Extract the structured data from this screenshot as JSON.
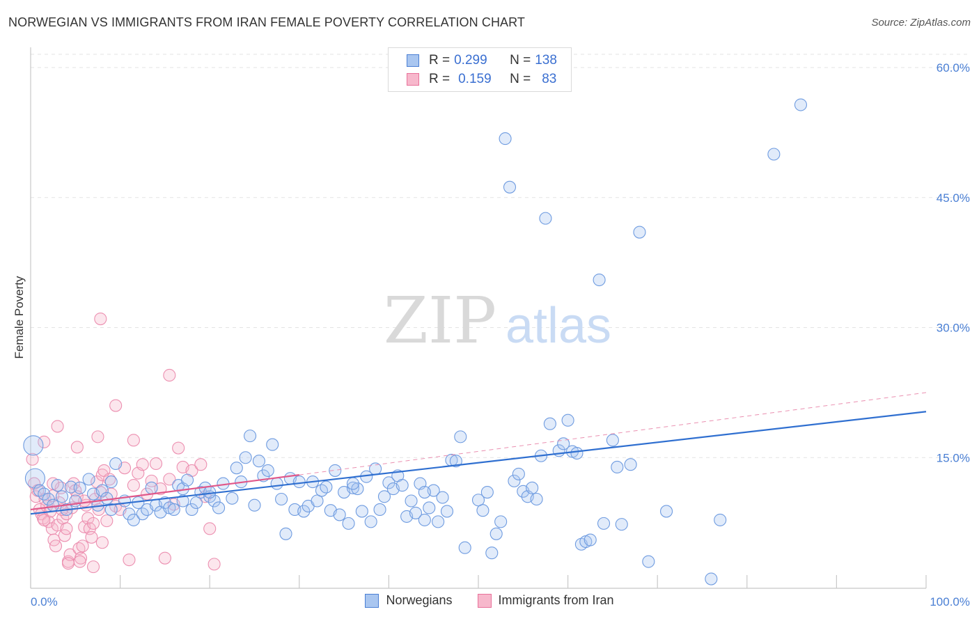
{
  "header": {
    "title": "NORWEGIAN VS IMMIGRANTS FROM IRAN FEMALE POVERTY CORRELATION CHART",
    "source": "Source: ZipAtlas.com"
  },
  "watermark": {
    "zip": "ZIP",
    "atlas": "atlas"
  },
  "legend": {
    "rows": [
      {
        "r_label": "R =",
        "r_value": "0.299",
        "n_label": "N =",
        "n_value": "138"
      },
      {
        "r_label": "R =",
        "r_value": "0.159",
        "n_label": "N =",
        "n_value": "83"
      }
    ]
  },
  "colors": {
    "blue": "#4a7fd4",
    "blue_fill": "#a9c6f0",
    "blue_line": "#2f6fd0",
    "pink": "#e8719a",
    "pink_fill": "#f7b8cc",
    "pink_line": "#e0588a"
  },
  "chart_data": {
    "type": "scatter",
    "title": "NORWEGIAN VS IMMIGRANTS FROM IRAN FEMALE POVERTY CORRELATION CHART",
    "xlabel": "",
    "ylabel": "Female Poverty",
    "xlim": [
      0,
      100
    ],
    "ylim": [
      0,
      63
    ],
    "x_tick_labels": [
      "0.0%",
      "100.0%"
    ],
    "y_ticks": [
      15,
      30,
      45,
      60
    ],
    "y_tick_labels": [
      "15.0%",
      "30.0%",
      "45.0%",
      "60.0%"
    ],
    "grid": true,
    "legend_position": "bottom",
    "series": [
      {
        "name": "Norwegians",
        "color": "#4a7fd4",
        "trend": {
          "x": [
            0,
            100
          ],
          "y": [
            8.5,
            20.3
          ],
          "style": "solid"
        },
        "points": [
          [
            0.3,
            16.4
          ],
          [
            0.5,
            12.6
          ],
          [
            1.0,
            11.2
          ],
          [
            1.5,
            10.8
          ],
          [
            2.0,
            10.2
          ],
          [
            2.5,
            9.5
          ],
          [
            3.0,
            11.8
          ],
          [
            3.5,
            10.5
          ],
          [
            4.0,
            9.0
          ],
          [
            4.5,
            11.6
          ],
          [
            5.0,
            10.0
          ],
          [
            5.5,
            11.5
          ],
          [
            6.5,
            12.5
          ],
          [
            7.0,
            10.8
          ],
          [
            7.5,
            9.5
          ],
          [
            8.0,
            11.2
          ],
          [
            8.5,
            10.3
          ],
          [
            9.0,
            12.2
          ],
          [
            9.5,
            14.3
          ],
          [
            10.5,
            10.0
          ],
          [
            11.0,
            8.5
          ],
          [
            11.5,
            7.8
          ],
          [
            12.0,
            9.8
          ],
          [
            12.5,
            8.5
          ],
          [
            13.0,
            9.0
          ],
          [
            13.5,
            11.5
          ],
          [
            14.0,
            9.5
          ],
          [
            14.5,
            8.7
          ],
          [
            15.0,
            9.8
          ],
          [
            15.5,
            9.2
          ],
          [
            16.0,
            9.0
          ],
          [
            16.5,
            11.8
          ],
          [
            17.0,
            11.4
          ],
          [
            17.5,
            12.4
          ],
          [
            18.0,
            9.0
          ],
          [
            18.5,
            9.8
          ],
          [
            19.0,
            11.0
          ],
          [
            19.5,
            11.5
          ],
          [
            20.0,
            10.5
          ],
          [
            20.5,
            10.0
          ],
          [
            21.0,
            9.2
          ],
          [
            21.5,
            12.0
          ],
          [
            22.5,
            10.3
          ],
          [
            23.0,
            13.8
          ],
          [
            23.5,
            12.2
          ],
          [
            24.0,
            15.0
          ],
          [
            24.5,
            17.5
          ],
          [
            25.0,
            9.5
          ],
          [
            25.5,
            14.6
          ],
          [
            26.0,
            12.9
          ],
          [
            26.5,
            13.5
          ],
          [
            27.0,
            16.5
          ],
          [
            27.5,
            12.0
          ],
          [
            28.0,
            10.2
          ],
          [
            28.5,
            6.2
          ],
          [
            29.0,
            12.6
          ],
          [
            29.5,
            9.0
          ],
          [
            30.0,
            12.2
          ],
          [
            30.5,
            8.8
          ],
          [
            31.0,
            9.4
          ],
          [
            31.5,
            12.2
          ],
          [
            32.0,
            10.0
          ],
          [
            32.5,
            11.2
          ],
          [
            33.0,
            11.6
          ],
          [
            33.5,
            8.9
          ],
          [
            34.0,
            13.5
          ],
          [
            34.5,
            8.4
          ],
          [
            35.0,
            11.0
          ],
          [
            35.5,
            7.4
          ],
          [
            36.0,
            11.5
          ],
          [
            36.5,
            11.4
          ],
          [
            37.0,
            8.8
          ],
          [
            37.5,
            12.8
          ],
          [
            38.0,
            7.6
          ],
          [
            38.5,
            13.7
          ],
          [
            39.0,
            9.0
          ],
          [
            39.5,
            10.5
          ],
          [
            40.0,
            12.1
          ],
          [
            40.5,
            11.4
          ],
          [
            41.0,
            12.9
          ],
          [
            41.5,
            11.8
          ],
          [
            42.0,
            8.2
          ],
          [
            42.5,
            10.0
          ],
          [
            43.0,
            8.6
          ],
          [
            43.5,
            12.0
          ],
          [
            44.0,
            7.8
          ],
          [
            44.5,
            9.2
          ],
          [
            45.0,
            11.2
          ],
          [
            45.5,
            7.6
          ],
          [
            46.0,
            10.4
          ],
          [
            46.5,
            8.8
          ],
          [
            47.0,
            14.7
          ],
          [
            47.5,
            14.6
          ],
          [
            48.0,
            17.4
          ],
          [
            48.5,
            4.6
          ],
          [
            50.0,
            10.1
          ],
          [
            50.5,
            8.9
          ],
          [
            51.0,
            11.0
          ],
          [
            51.5,
            4.0
          ],
          [
            52.0,
            6.2
          ],
          [
            52.5,
            7.6
          ],
          [
            53.0,
            51.8
          ],
          [
            53.5,
            46.2
          ],
          [
            54.0,
            12.3
          ],
          [
            54.5,
            13.1
          ],
          [
            55.0,
            11.1
          ],
          [
            55.5,
            10.5
          ],
          [
            56.0,
            11.5
          ],
          [
            56.5,
            10.2
          ],
          [
            57.0,
            15.2
          ],
          [
            57.5,
            42.6
          ],
          [
            58.0,
            18.9
          ],
          [
            59.0,
            15.8
          ],
          [
            59.5,
            16.6
          ],
          [
            60.0,
            19.3
          ],
          [
            60.5,
            15.7
          ],
          [
            61.0,
            15.5
          ],
          [
            61.5,
            5.0
          ],
          [
            62.0,
            5.3
          ],
          [
            62.5,
            5.5
          ],
          [
            63.5,
            35.5
          ],
          [
            64.0,
            7.4
          ],
          [
            65.0,
            17.0
          ],
          [
            65.5,
            13.9
          ],
          [
            66.0,
            7.3
          ],
          [
            67.0,
            14.2
          ],
          [
            68.0,
            41.0
          ],
          [
            69.0,
            3.0
          ],
          [
            71.0,
            8.8
          ],
          [
            76.0,
            1.0
          ],
          [
            77.0,
            7.8
          ],
          [
            83.0,
            50.0
          ],
          [
            86.0,
            55.7
          ],
          [
            20.0,
            11.0
          ],
          [
            36.0,
            12.0
          ],
          [
            44.0,
            11.0
          ],
          [
            9.0,
            9.0
          ],
          [
            17.0,
            10.0
          ]
        ]
      },
      {
        "name": "Immigrants from Iran",
        "color": "#e8719a",
        "trend": {
          "x": [
            0,
            30
          ],
          "y": [
            9.0,
            13.0
          ],
          "style": "solid",
          "extended": {
            "x": [
              30,
              100
            ],
            "y": [
              13.0,
              22.5
            ],
            "style": "dashed"
          }
        },
        "points": [
          [
            0.2,
            14.8
          ],
          [
            0.4,
            12.0
          ],
          [
            0.6,
            10.5
          ],
          [
            0.8,
            11.2
          ],
          [
            1.0,
            9.0
          ],
          [
            1.2,
            8.5
          ],
          [
            1.4,
            8.0
          ],
          [
            1.6,
            10.2
          ],
          [
            1.8,
            9.4
          ],
          [
            2.0,
            7.6
          ],
          [
            2.2,
            8.8
          ],
          [
            2.4,
            6.8
          ],
          [
            2.6,
            5.5
          ],
          [
            2.8,
            4.8
          ],
          [
            3.0,
            7.2
          ],
          [
            3.2,
            9.8
          ],
          [
            3.4,
            11.5
          ],
          [
            3.6,
            8.0
          ],
          [
            3.8,
            6.0
          ],
          [
            4.0,
            6.8
          ],
          [
            4.2,
            3.0
          ],
          [
            4.4,
            3.8
          ],
          [
            4.6,
            9.2
          ],
          [
            4.8,
            12.0
          ],
          [
            5.0,
            11.2
          ],
          [
            5.2,
            10.5
          ],
          [
            5.4,
            4.5
          ],
          [
            5.6,
            3.4
          ],
          [
            5.8,
            4.8
          ],
          [
            6.0,
            7.0
          ],
          [
            6.2,
            9.5
          ],
          [
            6.4,
            8.0
          ],
          [
            6.6,
            6.8
          ],
          [
            6.8,
            5.8
          ],
          [
            7.0,
            7.4
          ],
          [
            7.2,
            10.2
          ],
          [
            7.4,
            12.2
          ],
          [
            7.6,
            9.0
          ],
          [
            7.8,
            11.0
          ],
          [
            8.0,
            13.0
          ],
          [
            8.2,
            13.5
          ],
          [
            8.5,
            7.7
          ],
          [
            8.8,
            12.5
          ],
          [
            9.0,
            10.8
          ],
          [
            9.5,
            9.4
          ],
          [
            10.0,
            9.0
          ],
          [
            10.5,
            13.8
          ],
          [
            11.0,
            3.2
          ],
          [
            11.5,
            11.8
          ],
          [
            12.0,
            13.2
          ],
          [
            12.5,
            14.2
          ],
          [
            13.0,
            10.8
          ],
          [
            13.5,
            12.3
          ],
          [
            14.0,
            14.3
          ],
          [
            14.5,
            11.4
          ],
          [
            15.0,
            3.4
          ],
          [
            15.5,
            12.5
          ],
          [
            16.0,
            9.6
          ],
          [
            16.5,
            16.1
          ],
          [
            17.0,
            13.9
          ],
          [
            18.0,
            13.5
          ],
          [
            19.0,
            14.2
          ],
          [
            19.5,
            10.5
          ],
          [
            20.0,
            6.8
          ],
          [
            20.5,
            2.7
          ],
          [
            7.8,
            31.0
          ],
          [
            9.5,
            21.0
          ],
          [
            15.5,
            24.5
          ],
          [
            3.0,
            18.6
          ],
          [
            5.2,
            16.2
          ],
          [
            7.5,
            17.4
          ],
          [
            11.5,
            17.0
          ],
          [
            1.5,
            16.8
          ],
          [
            2.5,
            12.0
          ],
          [
            4.0,
            8.5
          ],
          [
            6.0,
            10.0
          ],
          [
            8.0,
            5.2
          ],
          [
            5.5,
            3.0
          ],
          [
            4.2,
            2.8
          ],
          [
            7.0,
            2.4
          ],
          [
            1.5,
            7.8
          ],
          [
            2.5,
            10.6
          ],
          [
            3.5,
            9.0
          ]
        ]
      }
    ]
  },
  "bottom_legend": {
    "items": [
      {
        "label": "Norwegians"
      },
      {
        "label": "Immigrants from Iran"
      }
    ]
  }
}
